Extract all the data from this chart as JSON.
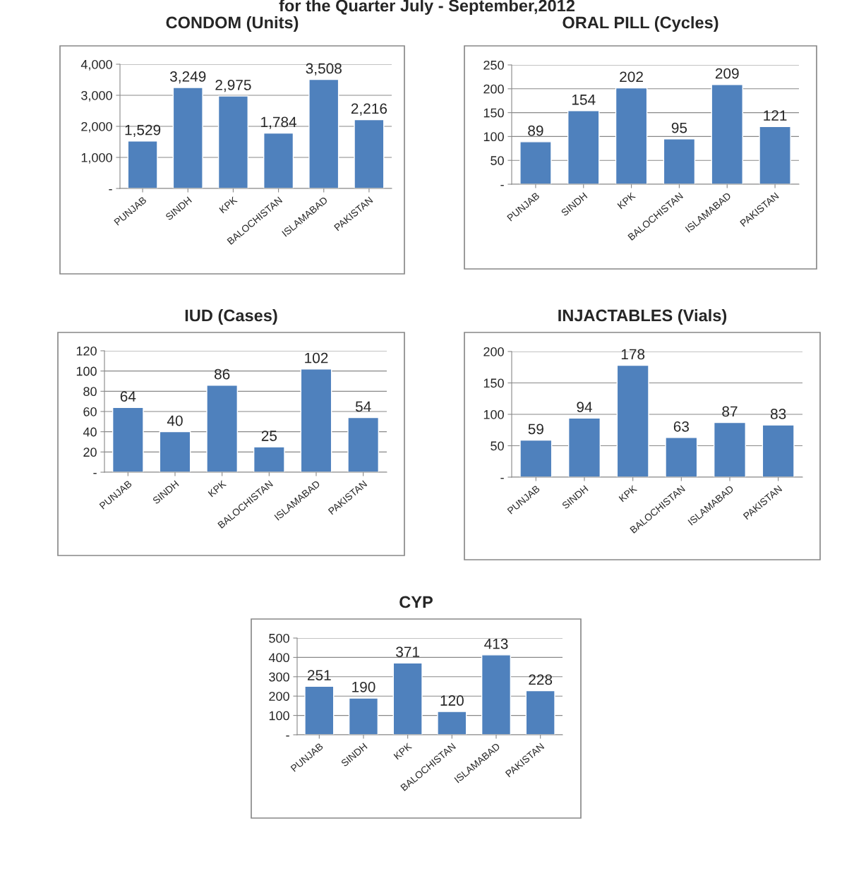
{
  "chart_data": [
    {
      "type": "bar",
      "title": "CONDOM (Units)",
      "annotations": [
        "for the Quarter July - September,2012"
      ],
      "categories": [
        "PUNJAB",
        "SINDH",
        "KPK",
        "BALOCHISTAN",
        "ISLAMABAD",
        "PAKISTAN"
      ],
      "values": [
        1529,
        3249,
        2975,
        1784,
        3508,
        2216
      ],
      "value_labels": [
        "1,529",
        "3,249",
        "2,975",
        "1,784",
        "3,508",
        "2,216"
      ],
      "color": "#4f81bd",
      "ylim": [
        0,
        4000
      ],
      "yticks": [
        {
          "value": 0,
          "label": "-"
        },
        {
          "value": 1000,
          "label": "1,000"
        },
        {
          "value": 2000,
          "label": "2,000"
        },
        {
          "value": 3000,
          "label": "3,000"
        },
        {
          "value": 4000,
          "label": "4,000"
        }
      ],
      "grid": "y",
      "legend": false
    },
    {
      "type": "bar",
      "title": "ORAL PILL (Cycles)",
      "categories": [
        "PUNJAB",
        "SINDH",
        "KPK",
        "BALOCHISTAN",
        "ISLAMABAD",
        "PAKISTAN"
      ],
      "values": [
        89,
        154,
        202,
        95,
        209,
        121
      ],
      "data_labels": true,
      "color": "#4f81bd",
      "ylim": [
        0,
        250
      ],
      "yticks": [
        {
          "value": 0,
          "label": "-"
        },
        50,
        100,
        150,
        200,
        250
      ],
      "grid": "y",
      "legend": false
    },
    {
      "type": "bar",
      "title": "IUD (Cases)",
      "categories": [
        "PUNJAB",
        "SINDH",
        "KPK",
        "BALOCHISTAN",
        "ISLAMABAD",
        "PAKISTAN"
      ],
      "values": [
        64,
        40,
        86,
        25,
        102,
        54
      ],
      "data_labels": true,
      "color": "#4f81bd",
      "ylim": [
        0,
        120
      ],
      "yticks": [
        {
          "value": 0,
          "label": "-"
        },
        20,
        40,
        60,
        80,
        100,
        120
      ],
      "grid": "y",
      "legend": false
    },
    {
      "type": "bar",
      "title": "INJACTABLES (Vials)",
      "categories": [
        "PUNJAB",
        "SINDH",
        "KPK",
        "BALOCHISTAN",
        "ISLAMABAD",
        "PAKISTAN"
      ],
      "values": [
        59,
        94,
        178,
        63,
        87,
        83
      ],
      "data_labels": true,
      "color": "#4f81bd",
      "ylim": [
        0,
        200
      ],
      "yticks": [
        {
          "value": 0,
          "label": "-"
        },
        50,
        100,
        150,
        200
      ],
      "grid": "y",
      "legend": false
    },
    {
      "type": "bar",
      "title": "CYP",
      "categories": [
        "PUNJAB",
        "SINDH",
        "KPK",
        "BALOCHISTAN",
        "ISLAMABAD",
        "PAKISTAN"
      ],
      "values": [
        251,
        190,
        371,
        120,
        413,
        228
      ],
      "data_labels": true,
      "color": "#4f81bd",
      "ylim": [
        0,
        500
      ],
      "yticks": [
        {
          "value": 0,
          "label": "-"
        },
        100,
        200,
        300,
        400,
        500
      ],
      "grid": "y",
      "legend": false
    }
  ]
}
